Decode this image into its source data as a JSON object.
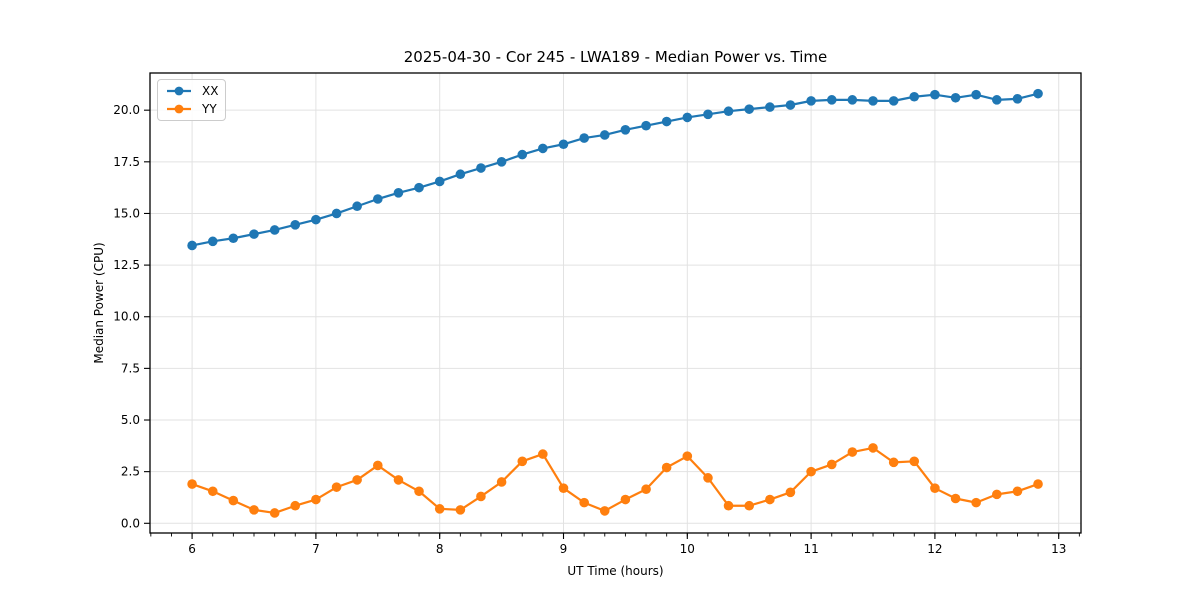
{
  "figure": {
    "title": "2025-04-30 - Cor 245 - LWA189 - Median Power vs. Time"
  },
  "chart_data": {
    "type": "line",
    "title": "2025-04-30 - Cor 245 - LWA189 - Median Power vs. Time",
    "xlabel": "UT Time (hours)",
    "ylabel": "Median Power (CPU)",
    "xlim": [
      5.66,
      13.18
    ],
    "ylim": [
      -0.47,
      21.8
    ],
    "grid": true,
    "legend_position": "upper-left",
    "x_major_ticks": [
      6,
      7,
      8,
      9,
      10,
      11,
      12,
      13
    ],
    "x_major_labels": [
      "6",
      "7",
      "8",
      "9",
      "10",
      "11",
      "12",
      "13"
    ],
    "x_minor_step": 0.166667,
    "y_major_ticks": [
      0,
      2.5,
      5,
      7.5,
      10,
      12.5,
      15,
      17.5,
      20
    ],
    "y_major_labels": [
      "0.0",
      "2.5",
      "5.0",
      "7.5",
      "10.0",
      "12.5",
      "15.0",
      "17.5",
      "20.0"
    ],
    "x": [
      6.0,
      6.167,
      6.333,
      6.5,
      6.667,
      6.833,
      7.0,
      7.167,
      7.333,
      7.5,
      7.667,
      7.833,
      8.0,
      8.167,
      8.333,
      8.5,
      8.667,
      8.833,
      9.0,
      9.167,
      9.333,
      9.5,
      9.667,
      9.833,
      10.0,
      10.167,
      10.333,
      10.5,
      10.667,
      10.833,
      11.0,
      11.167,
      11.333,
      11.5,
      11.667,
      11.833,
      12.0,
      12.167,
      12.333,
      12.5,
      12.667,
      12.833
    ],
    "series": [
      {
        "name": "XX",
        "color": "#1f77b4",
        "values": [
          13.45,
          13.65,
          13.8,
          14.0,
          14.2,
          14.45,
          14.7,
          15.0,
          15.35,
          15.7,
          16.0,
          16.25,
          16.55,
          16.9,
          17.2,
          17.5,
          17.85,
          18.15,
          18.35,
          18.65,
          18.8,
          19.05,
          19.25,
          19.45,
          19.65,
          19.8,
          19.95,
          20.05,
          20.15,
          20.25,
          20.45,
          20.5,
          20.5,
          20.45,
          20.45,
          20.65,
          20.75,
          20.6,
          20.75,
          20.5,
          20.55,
          20.8
        ]
      },
      {
        "name": "YY",
        "color": "#ff7f0e",
        "values": [
          1.9,
          1.55,
          1.1,
          0.65,
          0.5,
          0.85,
          1.15,
          1.75,
          2.1,
          2.8,
          2.1,
          1.55,
          0.7,
          0.65,
          1.3,
          2.0,
          3.0,
          3.35,
          1.7,
          1.0,
          0.6,
          1.15,
          1.65,
          2.7,
          3.25,
          2.2,
          0.85,
          0.85,
          1.15,
          1.5,
          2.5,
          2.85,
          3.45,
          3.65,
          2.95,
          3.0,
          1.7,
          1.2,
          1.0,
          1.4,
          1.55,
          1.9
        ]
      }
    ]
  },
  "style": {
    "grid_color": "#e2e2e2",
    "spine_color": "#000000",
    "tick_color": "#000000",
    "background": "#ffffff",
    "line_width": 2.2,
    "marker_radius": 4.8
  }
}
